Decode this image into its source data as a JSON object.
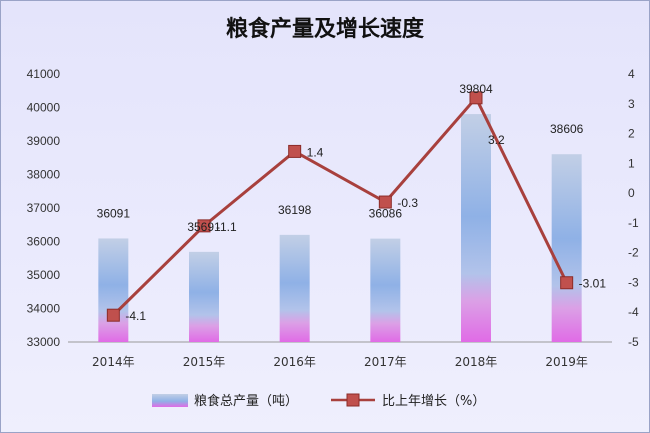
{
  "chart_data": {
    "type": "bar+line",
    "title": "粮食产量及增长速度",
    "categories": [
      "2014年",
      "2015年",
      "2016年",
      "2017年",
      "2018年",
      "2019年"
    ],
    "series": [
      {
        "name": "粮食总产量（吨）",
        "type": "bar",
        "axis": "left",
        "values": [
          36091,
          35691,
          36198,
          36086,
          39804,
          38606
        ],
        "labels": [
          "36091",
          "35691",
          "36198",
          "36086",
          "39804",
          "38606"
        ]
      },
      {
        "name": "比上年增长（%）",
        "type": "line",
        "axis": "right",
        "values": [
          -4.1,
          -1.1,
          1.4,
          -0.3,
          3.2,
          -3.01
        ],
        "labels": [
          "-4.1",
          "-1.1",
          "1.4",
          "-0.3",
          "3.2",
          "-3.01"
        ]
      }
    ],
    "left_axis": {
      "min": 33000,
      "max": 41000,
      "step": 1000,
      "ticks": [
        "33000",
        "34000",
        "35000",
        "36000",
        "37000",
        "38000",
        "39000",
        "40000",
        "41000"
      ]
    },
    "right_axis": {
      "min": -5,
      "max": 4,
      "step": 1,
      "ticks": [
        "-5",
        "-4",
        "-3",
        "-2",
        "-1",
        "0",
        "1",
        "2",
        "3",
        "4"
      ]
    },
    "grid": false,
    "legend_position": "bottom",
    "colors": {
      "line": "#a8403d",
      "marker": "#c0504d",
      "bar_top": "#b7c8e6",
      "bar_mid": "#7fa8e0",
      "bar_bottom": "#e07be6"
    }
  }
}
